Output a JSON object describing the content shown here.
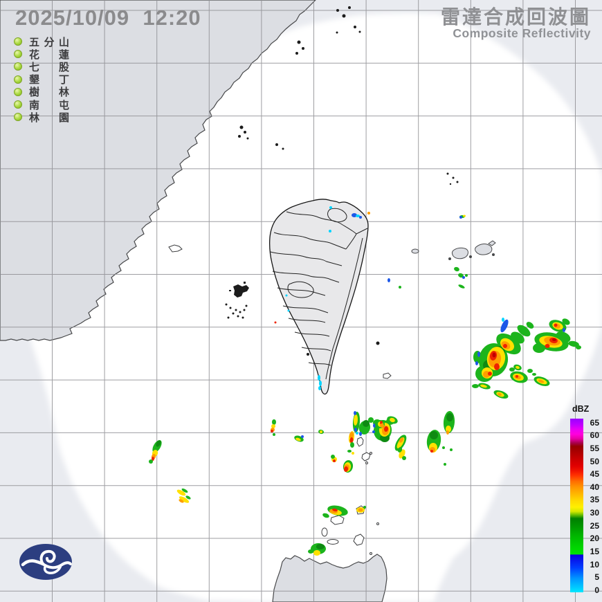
{
  "header": {
    "timestamp": "2025/10/09  12:20",
    "title_zh": "雷達合成回波圖",
    "title_en": "Composite Reflectivity"
  },
  "stations": {
    "names": [
      "五分山",
      "花蓮",
      "七股",
      "墾丁",
      "樹林",
      "南屯",
      "林園"
    ]
  },
  "scale": {
    "unit": "dBZ",
    "ticks": [
      65,
      60,
      55,
      50,
      45,
      40,
      35,
      30,
      25,
      20,
      15,
      10,
      5,
      0
    ]
  },
  "palette": {
    "g": "#1cb41c",
    "d": "#0e8a12",
    "y": "#ffe100",
    "o": "#ff9e00",
    "r": "#ee2400",
    "R": "#c00000",
    "b": "#1b57e8",
    "c": "#00d4ff"
  },
  "echoes": [
    [
      "b",
      729,
      471,
      4,
      10,
      25
    ],
    [
      "c",
      727,
      462,
      2,
      3,
      0
    ],
    [
      "g",
      757,
      478,
      11,
      6,
      38
    ],
    [
      "g",
      766,
      470,
      6,
      4,
      38
    ],
    [
      "g",
      735,
      497,
      20,
      12,
      35
    ],
    [
      "g",
      713,
      520,
      21,
      24,
      8
    ],
    [
      "g",
      700,
      540,
      13,
      12,
      0
    ],
    [
      "g",
      690,
      516,
      6,
      9,
      0
    ],
    [
      "g",
      748,
      488,
      11,
      7,
      35
    ],
    [
      "d",
      720,
      508,
      10,
      8,
      0
    ],
    [
      "d",
      706,
      528,
      8,
      8,
      0
    ],
    [
      "y",
      733,
      498,
      11,
      8,
      38
    ],
    [
      "y",
      717,
      518,
      13,
      17,
      10
    ],
    [
      "y",
      704,
      539,
      8,
      8,
      0
    ],
    [
      "o",
      731,
      499,
      7,
      5,
      38
    ],
    [
      "o",
      715,
      519,
      9,
      12,
      10
    ],
    [
      "o",
      703,
      541,
      5,
      5,
      0
    ],
    [
      "r",
      713,
      514,
      5,
      7,
      10
    ],
    [
      "r",
      718,
      530,
      4,
      5,
      0
    ],
    [
      "r",
      708,
      540,
      3,
      3,
      0
    ],
    [
      "r",
      730,
      500,
      3,
      3,
      30
    ],
    [
      "R",
      714,
      513,
      2.5,
      3.5,
      0
    ],
    [
      "b",
      692,
      512,
      2,
      4,
      0
    ],
    [
      "b",
      689,
      525,
      2,
      3,
      0
    ],
    [
      "g",
      806,
      471,
      13,
      8,
      20
    ],
    [
      "y",
      806,
      471,
      8,
      5,
      20
    ],
    [
      "o",
      805,
      471,
      5,
      3.5,
      20
    ],
    [
      "r",
      803,
      470,
      2.5,
      2.5,
      0
    ],
    [
      "g",
      818,
      465,
      6,
      4,
      30
    ],
    [
      "g",
      797,
      494,
      25,
      13,
      12
    ],
    [
      "g",
      779,
      503,
      9,
      7,
      0
    ],
    [
      "g",
      814,
      487,
      11,
      7,
      25
    ],
    [
      "g",
      829,
      497,
      8,
      4,
      10
    ],
    [
      "g",
      836,
      502,
      4,
      3,
      0
    ],
    [
      "y",
      796,
      494,
      17,
      8,
      12
    ],
    [
      "o",
      798,
      493,
      12,
      6,
      12
    ],
    [
      "r",
      800,
      492,
      6,
      4,
      12
    ],
    [
      "r",
      791,
      500,
      3.5,
      3,
      0
    ],
    [
      "R",
      801,
      491,
      3,
      2,
      0
    ],
    [
      "b",
      815,
      477,
      2,
      3,
      0
    ],
    [
      "g",
      748,
      531,
      6,
      4,
      20
    ],
    [
      "y",
      748,
      531,
      3,
      2,
      20
    ],
    [
      "g",
      740,
      534,
      4,
      3,
      0
    ],
    [
      "g",
      750,
      545,
      13,
      8,
      15
    ],
    [
      "y",
      749,
      545,
      8,
      5,
      15
    ],
    [
      "o",
      748,
      545,
      5,
      3,
      15
    ],
    [
      "r",
      747,
      544,
      2,
      2,
      0
    ],
    [
      "g",
      783,
      551,
      12,
      6,
      20
    ],
    [
      "y",
      783,
      551,
      8,
      3.5,
      20
    ],
    [
      "o",
      782,
      551,
      4.5,
      2,
      20
    ],
    [
      "g",
      700,
      558,
      9,
      4,
      15
    ],
    [
      "y",
      699,
      558,
      5,
      2,
      15
    ],
    [
      "g",
      687,
      558,
      5,
      3,
      0
    ],
    [
      "g",
      724,
      570,
      11,
      5,
      20
    ],
    [
      "y",
      723,
      570,
      6,
      3,
      20
    ],
    [
      "o",
      722,
      570,
      3,
      2,
      20
    ],
    [
      "g",
      766,
      536,
      4,
      3,
      0
    ],
    [
      "g",
      772,
      541,
      3,
      2,
      0
    ],
    [
      "g",
      553,
      622,
      13,
      15,
      8
    ],
    [
      "g",
      545,
      611,
      6,
      5,
      0
    ],
    [
      "g",
      564,
      609,
      6,
      5,
      0
    ],
    [
      "d",
      556,
      633,
      7,
      6,
      0
    ],
    [
      "y",
      556,
      621,
      8,
      10,
      8
    ],
    [
      "o",
      557,
      622,
      5,
      7,
      8
    ],
    [
      "r",
      558,
      620,
      3,
      4,
      8
    ],
    [
      "b",
      541,
      615,
      2,
      3,
      0
    ],
    [
      "b",
      540,
      624,
      2,
      2,
      0
    ],
    [
      "g",
      579,
      640,
      6,
      13,
      30
    ],
    [
      "y",
      579,
      640,
      3.5,
      9,
      30
    ],
    [
      "o",
      580,
      636,
      2.5,
      4,
      30
    ],
    [
      "y",
      581,
      656,
      4,
      7,
      25
    ],
    [
      "g",
      578,
      650,
      3,
      4,
      25
    ],
    [
      "g",
      584,
      662,
      3,
      3,
      0
    ],
    [
      "g",
      627,
      637,
      10,
      16,
      8
    ],
    [
      "d",
      627,
      629,
      6,
      6,
      0
    ],
    [
      "y",
      626,
      647,
      6,
      7,
      0
    ],
    [
      "o",
      625,
      650,
      4,
      4,
      0
    ],
    [
      "r",
      624,
      652,
      2,
      2,
      0
    ],
    [
      "g",
      649,
      610,
      8,
      16,
      4
    ],
    [
      "d",
      650,
      603,
      5,
      6,
      0
    ],
    [
      "y",
      648,
      620,
      4,
      5,
      0
    ],
    [
      "o",
      647,
      625,
      2,
      3,
      0
    ],
    [
      "g",
      641,
      647,
      2,
      2,
      0
    ],
    [
      "g",
      643,
      671,
      2,
      2,
      0
    ],
    [
      "g",
      652,
      650,
      2,
      2,
      0
    ],
    [
      "g",
      396,
      610,
      3,
      4,
      0
    ],
    [
      "y",
      395,
      616,
      3,
      3,
      0
    ],
    [
      "o",
      394,
      621,
      3,
      3,
      0
    ],
    [
      "r",
      393,
      623,
      2,
      2,
      0
    ],
    [
      "g",
      396,
      628,
      2,
      2,
      0
    ],
    [
      "g",
      432,
      634,
      7,
      4,
      20
    ],
    [
      "y",
      431,
      635,
      4,
      2,
      20
    ],
    [
      "b",
      437,
      631,
      2,
      2,
      0
    ],
    [
      "g",
      464,
      624,
      4,
      3,
      15
    ],
    [
      "y",
      464,
      624,
      2,
      2,
      0
    ],
    [
      "g",
      515,
      610,
      5,
      15,
      4
    ],
    [
      "y",
      514,
      607,
      3,
      8,
      4
    ],
    [
      "b",
      513,
      597,
      2,
      3,
      0
    ],
    [
      "b",
      514,
      621,
      2,
      3,
      0
    ],
    [
      "c",
      516,
      626,
      2,
      2,
      0
    ],
    [
      "g",
      527,
      618,
      8,
      10,
      12
    ],
    [
      "d",
      529,
      612,
      5,
      5,
      0
    ],
    [
      "b",
      521,
      627,
      2,
      3,
      0
    ],
    [
      "g",
      536,
      607,
      4,
      4,
      0
    ],
    [
      "g",
      549,
      613,
      7,
      6,
      0
    ],
    [
      "y",
      550,
      613,
      4,
      4,
      0
    ],
    [
      "r",
      551,
      611,
      2,
      3,
      0
    ],
    [
      "o",
      552,
      615,
      3,
      3,
      0
    ],
    [
      "g",
      567,
      607,
      8,
      5,
      20
    ],
    [
      "y",
      567,
      607,
      4,
      3,
      20
    ],
    [
      "y",
      508,
      632,
      4,
      9,
      8
    ],
    [
      "o",
      508,
      629,
      3,
      5,
      8
    ],
    [
      "r",
      508,
      636,
      2.5,
      4,
      8
    ],
    [
      "g",
      509,
      643,
      3,
      4,
      0
    ],
    [
      "y",
      483,
      664,
      4,
      4,
      0
    ],
    [
      "g",
      481,
      660,
      3,
      3,
      0
    ],
    [
      "r",
      483,
      666,
      2,
      2,
      0
    ],
    [
      "g",
      503,
      674,
      7,
      9,
      10
    ],
    [
      "y",
      502,
      675,
      5,
      7,
      10
    ],
    [
      "o",
      501,
      676,
      4,
      5,
      10
    ],
    [
      "r",
      500,
      678,
      3,
      4,
      10
    ],
    [
      "g",
      505,
      652,
      3,
      2,
      0
    ],
    [
      "y",
      510,
      655,
      2,
      2,
      0
    ],
    [
      "g",
      488,
      738,
      15,
      7,
      12
    ],
    [
      "y",
      485,
      740,
      9,
      4,
      12
    ],
    [
      "o",
      482,
      739,
      6,
      3,
      12
    ],
    [
      "r",
      484,
      737,
      4,
      2,
      12
    ],
    [
      "g",
      471,
      745,
      5,
      3,
      20
    ],
    [
      "y",
      521,
      737,
      6,
      4,
      0
    ],
    [
      "o",
      521,
      737,
      3.5,
      2.5,
      0
    ],
    [
      "g",
      527,
      733,
      2,
      2,
      0
    ],
    [
      "g",
      227,
      645,
      5,
      10,
      30
    ],
    [
      "d",
      229,
      641,
      3,
      5,
      30
    ],
    [
      "y",
      224,
      655,
      4,
      5,
      20
    ],
    [
      "o",
      222,
      660,
      3,
      4,
      15
    ],
    [
      "r",
      221,
      663,
      2,
      3,
      0
    ],
    [
      "g",
      218,
      667,
      3,
      3,
      0
    ],
    [
      "y",
      262,
      712,
      7,
      3,
      30
    ],
    [
      "g",
      267,
      709,
      5,
      2,
      30
    ],
    [
      "y",
      266,
      722,
      8,
      3,
      30
    ],
    [
      "o",
      262,
      724,
      4,
      2,
      30
    ],
    [
      "g",
      272,
      719,
      4,
      2,
      30
    ],
    [
      "g",
      460,
      793,
      11,
      8,
      0
    ],
    [
      "d",
      463,
      790,
      6,
      4,
      0
    ],
    [
      "y",
      458,
      799,
      5,
      4,
      0
    ],
    [
      "g",
      449,
      797,
      4,
      3,
      0
    ],
    [
      "g",
      660,
      389,
      4,
      3,
      20
    ],
    [
      "g",
      666,
      398,
      4,
      3,
      20
    ],
    [
      "g",
      674,
      398,
      2,
      2,
      0
    ],
    [
      "b",
      670,
      401,
      2,
      2,
      0
    ],
    [
      "g",
      667,
      414,
      5,
      2,
      25
    ],
    [
      "g",
      578,
      415,
      2,
      2,
      0
    ],
    [
      "b",
      562,
      405,
      2,
      3,
      0
    ],
    [
      "g",
      668,
      313,
      4,
      2,
      0
    ],
    [
      "b",
      666,
      314,
      2,
      2,
      0
    ],
    [
      "y",
      671,
      312,
      2,
      1.5,
      0
    ],
    [
      "c",
      478,
      300,
      2,
      2,
      0
    ],
    [
      "b",
      512,
      311,
      4,
      3,
      0
    ],
    [
      "c",
      517,
      312,
      3,
      2,
      0
    ],
    [
      "b",
      521,
      314,
      2,
      2,
      0
    ],
    [
      "o",
      533,
      308,
      2,
      2,
      0
    ],
    [
      "c",
      477,
      334,
      2,
      2,
      0
    ],
    [
      "c",
      461,
      546,
      2,
      4,
      0
    ],
    [
      "c",
      463,
      554,
      2,
      4,
      0
    ],
    [
      "c",
      462,
      561,
      2,
      3,
      0
    ],
    [
      "c",
      414,
      427,
      1.5,
      1.5,
      0
    ],
    [
      "c",
      417,
      449,
      1.5,
      1.5,
      0
    ],
    [
      "r",
      398,
      466,
      1.5,
      1.5,
      0
    ]
  ]
}
